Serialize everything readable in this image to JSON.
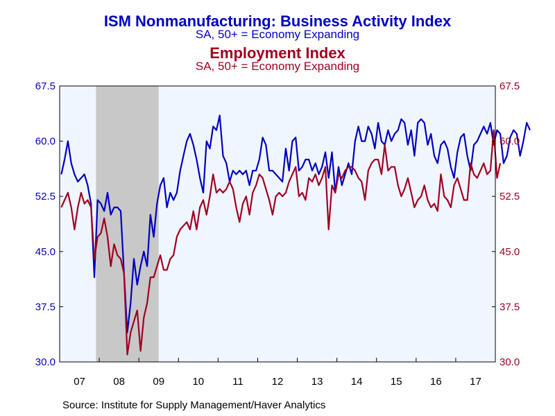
{
  "chart_data": {
    "type": "line",
    "title": "ISM Nonmanufacturing: Business Activity Index",
    "subtitle": "SA, 50+ = Economy Expanding",
    "title2": "Employment Index",
    "subtitle2": "SA, 50+ = Economy Expanding",
    "source": "Source:  Institute for Supply Management/Haver Analytics",
    "ylim": [
      30.0,
      67.5
    ],
    "y_ticks": [
      "30.0",
      "37.5",
      "45.0",
      "52.5",
      "60.0",
      "67.5"
    ],
    "x_tick_labels": [
      "07",
      "08",
      "09",
      "10",
      "11",
      "12",
      "13",
      "14",
      "15",
      "16",
      "17"
    ],
    "x_start": "2007-01",
    "recession": {
      "start": "2007-12",
      "end": "2009-06"
    },
    "colors": {
      "series1": "#0000c0",
      "series2": "#a00020",
      "recession": "#c8c8c8",
      "plot_bg": "#f0f6ff"
    },
    "series": [
      {
        "values": [
          55.5,
          57.5,
          60.0,
          57.0,
          55.5,
          54.5,
          55.0,
          55.5,
          54.0,
          51.5,
          41.5,
          52.0,
          51.5,
          50.5,
          53.0,
          50.0,
          51.0,
          51.0,
          50.5,
          42.0,
          34.0,
          38.0,
          44.0,
          40.5,
          43.0,
          45.0,
          43.0,
          50.0,
          47.0,
          51.5,
          54.0,
          55.0,
          51.0,
          53.0,
          52.0,
          53.0,
          56.0,
          58.0,
          60.0,
          61.0,
          59.5,
          57.5,
          55.0,
          53.0,
          60.0,
          59.0,
          62.0,
          61.5,
          63.5,
          58.0,
          57.0,
          54.5,
          56.0,
          55.5,
          56.0,
          55.5,
          56.0,
          54.0,
          56.0,
          56.0,
          57.5,
          60.5,
          59.5,
          56.0,
          56.0,
          55.5,
          55.0,
          54.5,
          59.0,
          56.0,
          60.0,
          60.5,
          56.0,
          56.5,
          57.5,
          57.5,
          56.0,
          57.0,
          55.5,
          56.5,
          58.5,
          55.0,
          58.5,
          53.0,
          56.5,
          54.0,
          55.5,
          57.0,
          55.5,
          60.0,
          62.0,
          60.0,
          60.0,
          62.0,
          61.0,
          59.0,
          62.5,
          60.0,
          59.5,
          61.5,
          60.0,
          61.0,
          61.5,
          63.0,
          62.5,
          59.5,
          61.5,
          58.0,
          62.5,
          63.0,
          62.5,
          59.5,
          61.0,
          58.0,
          57.0,
          59.5,
          60.0,
          59.0,
          56.5,
          55.0,
          58.5,
          60.5,
          61.0,
          58.0,
          56.0,
          59.5,
          60.0,
          61.0,
          62.0,
          61.0,
          62.5,
          59.5,
          61.5,
          61.0,
          57.0,
          58.0,
          60.5,
          61.5,
          61.0,
          58.0,
          60.0,
          62.5,
          61.5
        ]
      },
      {
        "values": [
          51.0,
          52.0,
          53.0,
          51.0,
          48.0,
          51.0,
          53.0,
          51.5,
          52.0,
          51.0,
          44.0,
          47.0,
          47.5,
          49.5,
          47.0,
          43.0,
          46.0,
          44.5,
          44.0,
          42.0,
          31.0,
          34.0,
          35.5,
          37.0,
          31.5,
          36.0,
          38.0,
          41.5,
          41.5,
          43.0,
          44.5,
          42.5,
          42.5,
          44.0,
          44.5,
          47.0,
          48.0,
          48.5,
          49.0,
          48.0,
          50.5,
          48.0,
          51.0,
          52.0,
          50.0,
          52.5,
          55.5,
          53.0,
          53.5,
          53.0,
          53.5,
          54.5,
          53.5,
          51.0,
          49.0,
          51.5,
          52.5,
          50.0,
          53.0,
          54.0,
          55.5,
          55.0,
          53.5,
          52.0,
          50.0,
          52.5,
          53.0,
          52.5,
          53.0,
          54.5,
          55.5,
          56.5,
          52.5,
          53.0,
          52.0,
          55.0,
          54.5,
          55.5,
          54.0,
          55.0,
          56.5,
          48.0,
          54.0,
          53.0,
          55.5,
          55.0,
          56.0,
          56.5,
          56.5,
          56.0,
          55.0,
          54.5,
          52.0,
          56.0,
          57.0,
          57.5,
          57.5,
          55.5,
          59.5,
          56.0,
          56.5,
          56.5,
          54.0,
          52.5,
          53.5,
          55.0,
          53.0,
          51.0,
          52.0,
          52.5,
          54.0,
          52.0,
          51.0,
          51.5,
          50.5,
          55.5,
          52.5,
          52.0,
          51.0,
          54.0,
          55.0,
          53.5,
          52.0,
          52.0,
          57.0,
          55.5,
          55.0,
          56.0,
          57.0,
          55.5,
          56.0,
          61.5,
          55.0,
          57.0
        ]
      }
    ]
  }
}
